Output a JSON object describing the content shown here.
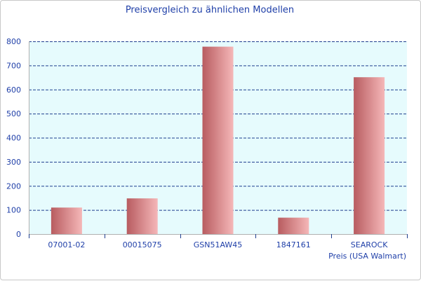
{
  "chart_data": {
    "type": "bar",
    "title": "Preisvergleich zu ähnlichen Modellen",
    "xlabel": "Preis (USA Walmart)",
    "ylabel": "",
    "categories": [
      "07001-02",
      "00015075",
      "GSN51AW45",
      "1847161",
      "SEAROCK"
    ],
    "values": [
      110,
      148,
      778,
      68,
      651
    ],
    "ylim": [
      0,
      800
    ],
    "yticks": [
      0,
      100,
      200,
      300,
      400,
      500,
      600,
      700,
      800
    ],
    "grid": true,
    "legend": "none"
  },
  "colors": {
    "plot_background": "#e6fbfd",
    "gridline": "#1f3f8f",
    "bar_dark": "#b85c60",
    "bar_light": "#f5b7b8",
    "text": "#1f3fa8",
    "axis": "#b0b0b0"
  }
}
